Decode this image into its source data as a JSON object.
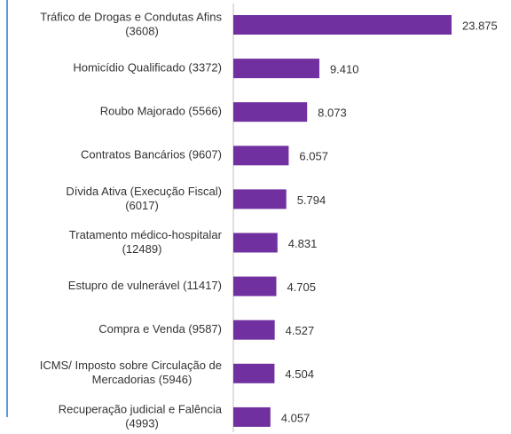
{
  "chart_data": {
    "type": "bar",
    "orientation": "horizontal",
    "categories": [
      [
        "Tráfico de Drogas e Condutas Afins",
        "(3608)"
      ],
      [
        "Homicídio Qualificado (3372)"
      ],
      [
        "Roubo Majorado (5566)"
      ],
      [
        "Contratos Bancários (9607)"
      ],
      [
        "Dívida Ativa (Execução Fiscal)",
        "(6017)"
      ],
      [
        "Tratamento médico-hospitalar",
        "(12489)"
      ],
      [
        "Estupro de vulnerável (11417)"
      ],
      [
        "Compra e Venda (9587)"
      ],
      [
        "ICMS/ Imposto sobre Circulação de",
        "Mercadorias (5946)"
      ],
      [
        "Recuperação judicial e Falência",
        "(4993)"
      ]
    ],
    "values": [
      23875,
      9410,
      8073,
      6057,
      5794,
      4831,
      4705,
      4527,
      4504,
      4057
    ],
    "value_labels": [
      "23.875",
      "9.410",
      "8.073",
      "6.057",
      "5.794",
      "4.831",
      "4.705",
      "4.527",
      "4.504",
      "4.057"
    ],
    "color": "#7030a0"
  }
}
